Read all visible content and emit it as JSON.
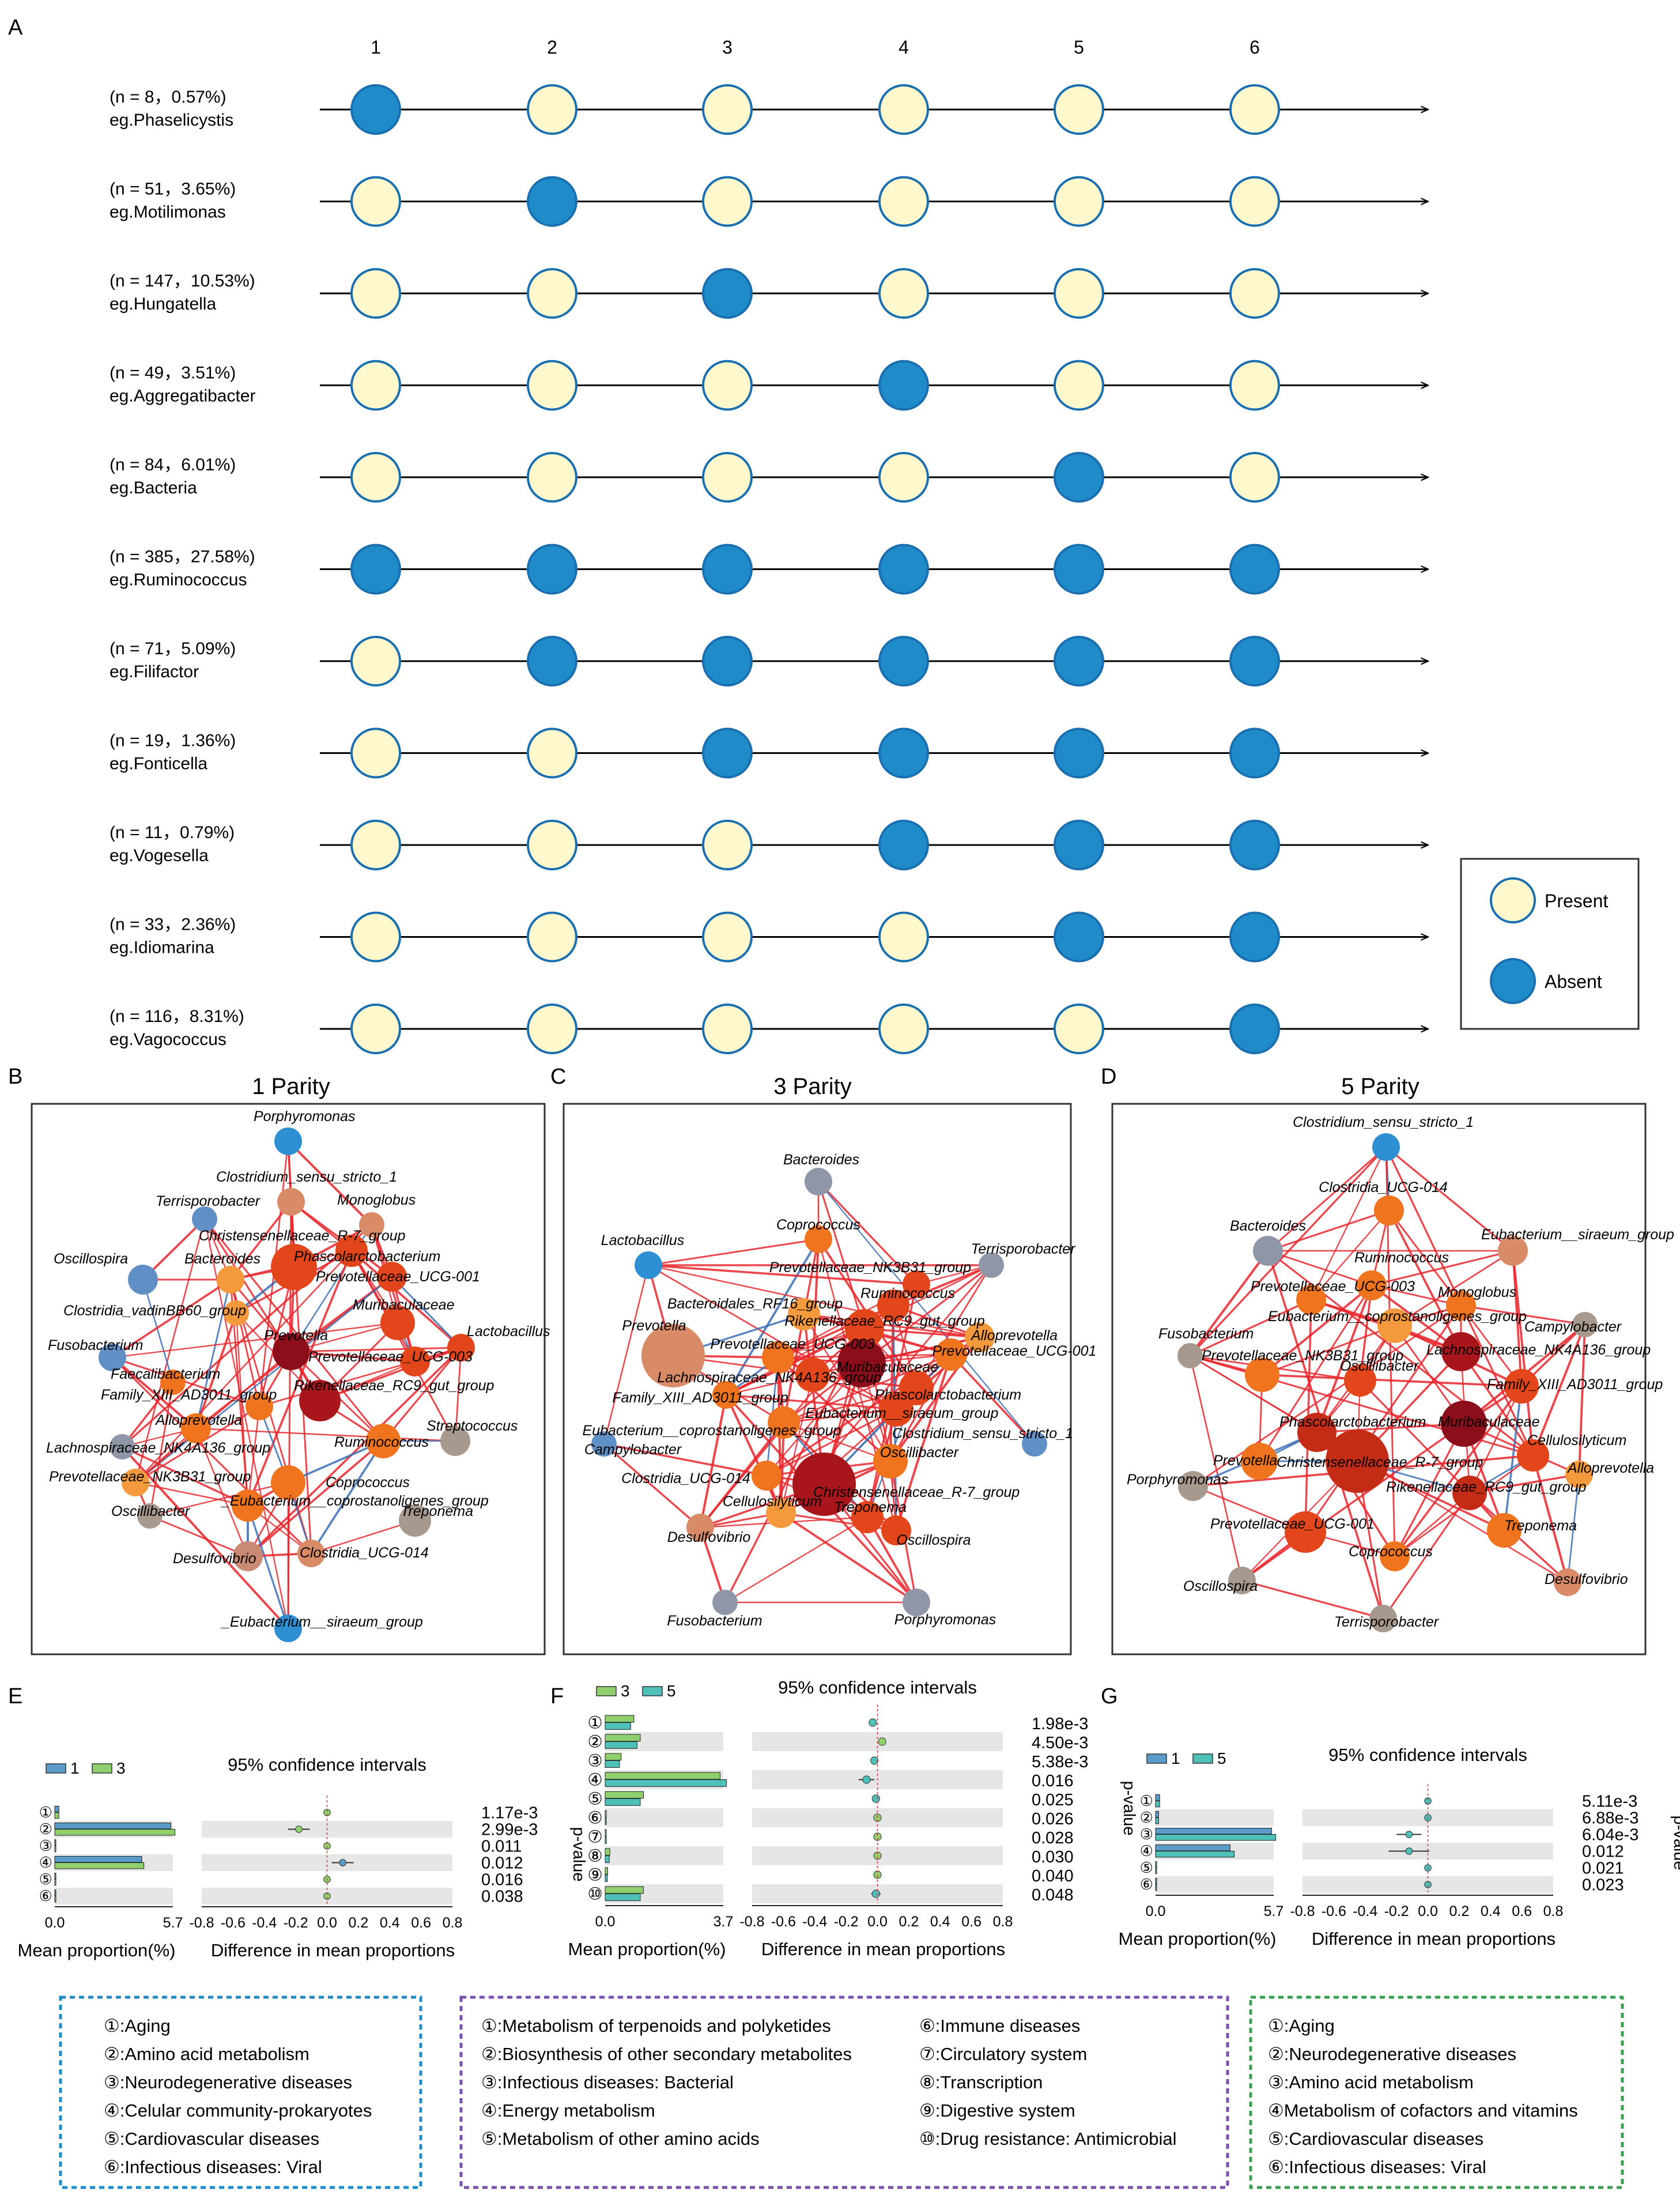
{
  "panel_letters": [
    "A",
    "B",
    "C",
    "D",
    "E",
    "F",
    "G"
  ],
  "legend": {
    "present": "Present",
    "absent": "Absent",
    "present_color": "#fff8cc",
    "absent_color": "#1f8bc9",
    "edge_color": "#1a6fb0"
  },
  "chart_data": [
    {
      "type": "table",
      "panel": "A",
      "columns": [
        "1",
        "2",
        "3",
        "4",
        "5",
        "6"
      ],
      "rows": [
        {
          "count": "(n = 8，0.57%)",
          "example": "eg.Phaselicystis",
          "states": [
            "Absent",
            "Present",
            "Present",
            "Present",
            "Present",
            "Present"
          ]
        },
        {
          "count": "(n = 51，3.65%)",
          "example": "eg.Motilimonas",
          "states": [
            "Present",
            "Absent",
            "Present",
            "Present",
            "Present",
            "Present"
          ]
        },
        {
          "count": "(n = 147，10.53%)",
          "example": "eg.Hungatella",
          "states": [
            "Present",
            "Present",
            "Absent",
            "Present",
            "Present",
            "Present"
          ]
        },
        {
          "count": "(n = 49，3.51%)",
          "example": "eg.Aggregatibacter",
          "states": [
            "Present",
            "Present",
            "Present",
            "Absent",
            "Present",
            "Present"
          ]
        },
        {
          "count": "(n = 84，6.01%)",
          "example": "eg.Bacteria",
          "states": [
            "Present",
            "Present",
            "Present",
            "Present",
            "Absent",
            "Present"
          ]
        },
        {
          "count": "(n = 385，27.58%)",
          "example": "eg.Ruminococcus",
          "states": [
            "Absent",
            "Absent",
            "Absent",
            "Absent",
            "Absent",
            "Absent"
          ]
        },
        {
          "count": "(n = 71，5.09%)",
          "example": "eg.Filifactor",
          "states": [
            "Present",
            "Absent",
            "Absent",
            "Absent",
            "Absent",
            "Absent"
          ]
        },
        {
          "count": "(n = 19，1.36%)",
          "example": "eg.Fonticella",
          "states": [
            "Present",
            "Present",
            "Absent",
            "Absent",
            "Absent",
            "Absent"
          ]
        },
        {
          "count": "(n = 11，0.79%)",
          "example": "eg.Vogesella",
          "states": [
            "Present",
            "Present",
            "Present",
            "Absent",
            "Absent",
            "Absent"
          ]
        },
        {
          "count": "(n = 33，2.36%)",
          "example": "eg.Idiomarina",
          "states": [
            "Present",
            "Present",
            "Present",
            "Present",
            "Absent",
            "Absent"
          ]
        },
        {
          "count": "(n = 116，8.31%)",
          "example": "eg.Vagococcus",
          "states": [
            "Present",
            "Present",
            "Present",
            "Present",
            "Present",
            "Absent"
          ]
        }
      ]
    },
    {
      "type": "network",
      "panel": "B",
      "title": "1 Parity",
      "nodes": [
        "Porphyromonas",
        "Clostridium_sensu_stricto_1",
        "Terrisporobacter",
        "Monoglobus",
        "Christensenellaceae_R-7_group",
        "Phascolarctobacterium",
        "Oscillospira",
        "Bacteroides",
        "Prevotellaceae_UCG-001",
        "Clostridia_vadinBB60_group",
        "Muribaculaceae",
        "Lactobacillus",
        "Prevotella",
        "Prevotellaceae_UCG-003",
        "Fusobacterium",
        "Faecalibacterium",
        "Rikenellaceae_RC9_gut_group",
        "Family_XIII_AD3011_group",
        "Alloprevotella",
        "Streptococcus",
        "Lachnospiraceae_NK4A136_group",
        "Ruminococcus",
        "Prevotellaceae_NK3B31_group",
        "Coprococcus",
        "Oscillibacter",
        "_Eubacterium__coprostanoligenes_group",
        "Treponema",
        "Desulfovibrio",
        "Clostridia_UCG-014",
        "_Eubacterium__siraeum_group"
      ]
    },
    {
      "type": "network",
      "panel": "C",
      "title": "3 Parity",
      "nodes": [
        "Bacteroides",
        "Coprococcus",
        "Terrisporobacter",
        "Lactobacillus",
        "Prevotellaceae_NK3B31_group",
        "Ruminococcus",
        "Bacteroidales_RF16_group",
        "Rikenellaceae_RC9_gut_group",
        "Alloprevotella",
        "Prevotella",
        "Prevotellaceae_UCG-003",
        "Prevotellaceae_UCG-001",
        "Muribaculaceae",
        "Lachnospiraceae_NK4A136_group",
        "Phascolarctobacterium",
        "Family_XIII_AD3011_group",
        "Eubacterium__siraeum_group",
        "Eubacterium__coprostanoligenes_group",
        "Clostridium_sensu_stricto_1",
        "Campylobacter",
        "Oscillibacter",
        "Clostridia_UCG-014",
        "Christensenellaceae_R-7_group",
        "Cellulosilyticum",
        "Treponema",
        "Desulfovibrio",
        "Oscillospira",
        "Fusobacterium",
        "Porphyromonas"
      ]
    },
    {
      "type": "network",
      "panel": "D",
      "title": "5 Parity",
      "nodes": [
        "Clostridium_sensu_stricto_1",
        "Clostridia_UCG-014",
        "Bacteroides",
        "Eubacterium__siraeum_group",
        "Ruminococcus",
        "Prevotellaceae_UCG-003",
        "Monoglobus",
        "Eubacterium__coprostanoligenes_group",
        "Campylobacter",
        "Fusobacterium",
        "Prevotellaceae_NK3B31_group",
        "Lachnospiraceae_NK4A136_group",
        "Oscillibacter",
        "Family_XIII_AD3011_group",
        "Phascolarctobacterium",
        "Muribaculaceae",
        "Cellulosilyticum",
        "Prevotella",
        "Christensenellaceae_R-7_group",
        "Alloprevotella",
        "Porphyromonas",
        "Rikenellaceae_RC9_gut_group",
        "Prevotellaceae_UCG-001",
        "Treponema",
        "Coprococcus",
        "Oscillospira",
        "Desulfovibrio",
        "Terrisporobacter"
      ]
    },
    {
      "type": "bar",
      "panel": "E",
      "groups": [
        "1",
        "3"
      ],
      "colors": [
        "#5b9bc9",
        "#8fcf6e"
      ],
      "ci_title": "95% confidence intervals",
      "xlabel_left": "Mean proportion(%)",
      "xlabel_right": "Difference in mean proportions",
      "ylabel_right": "p-value",
      "left_ticks": [
        "0.0",
        "5.7"
      ],
      "right_ticks": [
        "-0.8",
        "-0.6",
        "-0.4",
        "-0.2",
        "0.0",
        "0.2",
        "0.4",
        "0.6",
        "0.8"
      ],
      "xmax": 5.7,
      "categories": [
        "①",
        "②",
        "③",
        "④",
        "⑤",
        "⑥"
      ],
      "bars_a": [
        0.2,
        5.6,
        0.04,
        4.2,
        0.04,
        0.05
      ],
      "bars_b": [
        0.2,
        5.8,
        0.04,
        4.3,
        0.04,
        0.05
      ],
      "diff": [
        0.0,
        -0.18,
        0.0,
        0.1,
        0.0,
        0.0
      ],
      "ci_lo": [
        -0.01,
        -0.25,
        -0.01,
        0.03,
        -0.01,
        -0.01
      ],
      "ci_hi": [
        0.01,
        -0.11,
        0.01,
        0.17,
        0.01,
        0.01
      ],
      "diff_colors": [
        "#8fcf6e",
        "#8fcf6e",
        "#8fcf6e",
        "#5b9bc9",
        "#8fcf6e",
        "#8fcf6e"
      ],
      "pvalues": [
        "1.17e-3",
        "2.99e-3",
        "0.011",
        "0.012",
        "0.016",
        "0.038"
      ],
      "legend_items": [
        "①:Aging",
        "②:Amino acid metabolism",
        "③:Neurodegenerative diseases",
        "④:Celular community-prokaryotes",
        "⑤:Cardiovascular diseases",
        "⑥:Infectious diseases: Viral"
      ]
    },
    {
      "type": "bar",
      "panel": "F",
      "groups": [
        "3",
        "5"
      ],
      "colors": [
        "#8fcf6e",
        "#4ec0b8"
      ],
      "ci_title": "95% confidence intervals",
      "xlabel_left": "Mean proportion(%)",
      "xlabel_right": "Difference in mean proportions",
      "ylabel_right": "p-value",
      "left_ticks": [
        "0.0",
        "3.7"
      ],
      "right_ticks": [
        "-0.8",
        "-0.6",
        "-0.4",
        "-0.2",
        "0.0",
        "0.2",
        "0.4",
        "0.6",
        "0.8"
      ],
      "xmax": 3.7,
      "categories": [
        "①",
        "②",
        "③",
        "④",
        "⑤",
        "⑥",
        "⑦",
        "⑧",
        "⑨",
        "⑩"
      ],
      "bars_a": [
        0.9,
        1.1,
        0.5,
        3.6,
        1.2,
        0.02,
        0.02,
        0.15,
        0.08,
        1.2
      ],
      "bars_b": [
        0.8,
        1.0,
        0.45,
        3.8,
        1.1,
        0.02,
        0.02,
        0.13,
        0.07,
        1.1
      ],
      "diff": [
        -0.03,
        0.03,
        -0.02,
        -0.07,
        -0.01,
        0.0,
        0.0,
        0.0,
        0.0,
        -0.01
      ],
      "ci_lo": [
        -0.05,
        0.02,
        -0.03,
        -0.12,
        -0.02,
        -0.005,
        -0.005,
        -0.005,
        -0.005,
        -0.04
      ],
      "ci_hi": [
        -0.01,
        0.05,
        -0.01,
        -0.02,
        0.0,
        0.005,
        0.005,
        0.005,
        0.005,
        0.02
      ],
      "diff_colors": [
        "#4ec0b8",
        "#8fcf6e",
        "#4ec0b8",
        "#4ec0b8",
        "#4ec0b8",
        "#8fcf6e",
        "#8fcf6e",
        "#8fcf6e",
        "#8fcf6e",
        "#4ec0b8"
      ],
      "pvalues": [
        "1.98e-3",
        "4.50e-3",
        "5.38e-3",
        "0.016",
        "0.025",
        "0.026",
        "0.028",
        "0.030",
        "0.040",
        "0.048"
      ],
      "legend_items": [
        "①:Metabolism of terpenoids and polyketides",
        "②:Biosynthesis of other secondary metabolites",
        "③:Infectious diseases: Bacterial",
        "④:Energy metabolism",
        "⑤:Metabolism of other amino acids",
        "⑥:Immune diseases",
        "⑦:Circulatory system",
        "⑧:Transcription",
        "⑨:Digestive system",
        "⑩:Drug resistance: Antimicrobial"
      ]
    },
    {
      "type": "bar",
      "panel": "G",
      "groups": [
        "1",
        "5"
      ],
      "colors": [
        "#5b9bc9",
        "#4ec0b8"
      ],
      "ci_title": "95% confidence intervals",
      "xlabel_left": "Mean proportion(%)",
      "xlabel_right": "Difference in mean proportions",
      "ylabel_right": "p-value",
      "left_ticks": [
        "0.0",
        "5.7"
      ],
      "right_ticks": [
        "-0.8",
        "-0.6",
        "-0.4",
        "-0.2",
        "0.0",
        "0.2",
        "0.4",
        "0.6",
        "0.8"
      ],
      "xmax": 5.7,
      "categories": [
        "①",
        "②",
        "③",
        "④",
        "⑤",
        "⑥"
      ],
      "bars_a": [
        0.2,
        0.15,
        5.6,
        3.6,
        0.03,
        0.04
      ],
      "bars_b": [
        0.2,
        0.15,
        5.8,
        3.8,
        0.03,
        0.04
      ],
      "diff": [
        0.0,
        0.0,
        -0.12,
        -0.12,
        0.0,
        0.0
      ],
      "ci_lo": [
        -0.01,
        -0.01,
        -0.2,
        -0.25,
        -0.01,
        -0.01
      ],
      "ci_hi": [
        0.01,
        0.01,
        -0.04,
        0.01,
        0.01,
        0.01
      ],
      "diff_colors": [
        "#4ec0b8",
        "#4ec0b8",
        "#4ec0b8",
        "#4ec0b8",
        "#4ec0b8",
        "#4ec0b8"
      ],
      "pvalues": [
        "5.11e-3",
        "6.88e-3",
        "6.04e-3",
        "0.012",
        "0.021",
        "0.023"
      ],
      "legend_items": [
        "①:Aging",
        "②:Neurodegenerative diseases",
        "③:Amino acid metabolism",
        "④Metabolism of cofactors and vitamins",
        "⑤:Cardiovascular diseases",
        "⑥:Infectious diseases: Viral"
      ]
    }
  ]
}
